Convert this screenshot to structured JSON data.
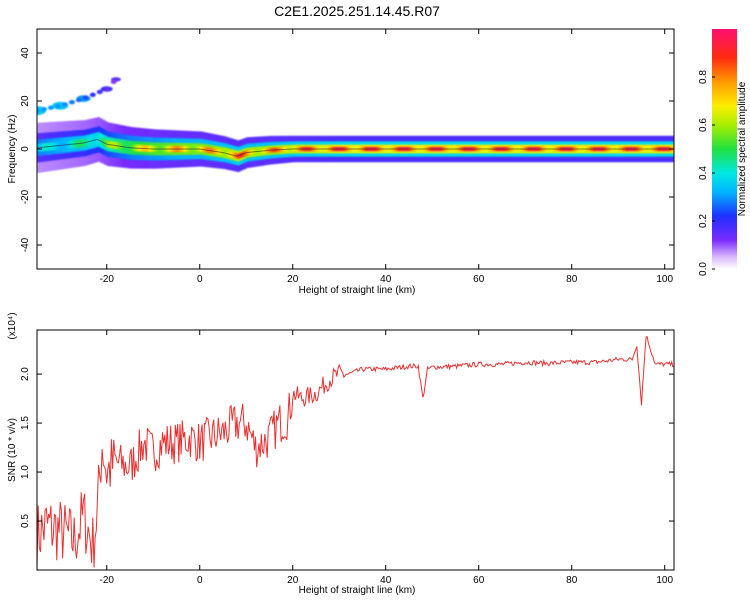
{
  "title": "C2E1.2025.251.14.45.R07",
  "colors": {
    "ridge": "#d8203a",
    "snr_line": "#e83030",
    "frame": "#000000"
  },
  "chart_data": [
    {
      "type": "heatmap",
      "title": "C2E1.2025.251.14.45.R07",
      "xlabel": "Height of straight line (km)",
      "ylabel": "Frequency (Hz)",
      "xlim": [
        -35,
        102
      ],
      "ylim": [
        -50,
        50
      ],
      "xticks": [
        "-20",
        "0",
        "20",
        "40",
        "60",
        "80",
        "100"
      ],
      "yticks": [
        "40",
        "20",
        "0",
        "-20",
        "-40"
      ],
      "colorbar": {
        "label": "Normalized spectral amplitude",
        "range": [
          0,
          1
        ],
        "ticks": [
          "0.0",
          "0.2",
          "0.4",
          "0.6",
          "0.8"
        ],
        "colormap": "rainbow (white-purple-blue-cyan-green-yellow-orange-red-magenta)"
      },
      "ridge": {
        "x": [
          -35,
          -30,
          -25,
          -22,
          -20,
          -15,
          -10,
          -5,
          0,
          5,
          8,
          10,
          15,
          20,
          30,
          50,
          70,
          90,
          100
        ],
        "freq": [
          0.5,
          1.5,
          2.5,
          4,
          2,
          0.5,
          0,
          0,
          0,
          -1.5,
          -3,
          -1.5,
          -0.5,
          0,
          0,
          0,
          0,
          0,
          0
        ],
        "amplitude": [
          0.4,
          0.45,
          0.5,
          0.55,
          0.6,
          0.7,
          0.75,
          0.8,
          0.8,
          0.85,
          0.9,
          0.85,
          0.85,
          0.9,
          0.95,
          0.95,
          0.95,
          0.95,
          0.95
        ]
      },
      "harmonic": {
        "x": [
          -35,
          -30,
          -25,
          -20,
          -18
        ],
        "freq": [
          16,
          18,
          21,
          25,
          29
        ],
        "amplitude": [
          0.3,
          0.3,
          0.25,
          0.15,
          0.1
        ]
      }
    },
    {
      "type": "line",
      "xlabel": "Height of straight line (km)",
      "ylabel": "SNR (10 * v/v)",
      "scale_label": "(x10⁴)",
      "xlim": [
        -35,
        102
      ],
      "ylim": [
        0,
        2.45
      ],
      "xticks": [
        "-20",
        "0",
        "20",
        "40",
        "60",
        "80",
        "100"
      ],
      "yticks": [
        "0.5",
        "1.0",
        "1.5",
        "2.0"
      ],
      "series": [
        {
          "x": [
            -35,
            -33,
            -30,
            -27,
            -25,
            -23,
            -22,
            -21,
            -20,
            -18,
            -15,
            -12,
            -10,
            -8,
            -5,
            -2,
            0,
            2,
            5,
            8,
            10,
            12,
            15,
            17,
            19,
            20,
            22,
            25,
            28,
            30,
            32,
            35,
            40,
            45,
            47,
            48,
            49,
            50,
            55,
            60,
            65,
            70,
            75,
            80,
            85,
            90,
            93,
            94,
            95,
            96,
            98,
            100,
            102
          ],
          "y": [
            0.35,
            0.45,
            0.4,
            0.3,
            0.55,
            0.25,
            0.6,
            1.3,
            1.0,
            1.1,
            1.05,
            1.3,
            1.2,
            1.3,
            1.3,
            1.35,
            1.3,
            1.35,
            1.4,
            1.5,
            1.5,
            1.25,
            1.35,
            1.5,
            1.55,
            1.8,
            1.75,
            1.8,
            1.95,
            2.0,
            2.0,
            2.05,
            2.05,
            2.08,
            2.08,
            1.75,
            2.05,
            2.07,
            2.08,
            2.1,
            2.1,
            2.12,
            2.11,
            2.12,
            2.12,
            2.15,
            2.15,
            2.3,
            1.7,
            2.4,
            2.1,
            2.1,
            2.1
          ]
        }
      ]
    }
  ]
}
